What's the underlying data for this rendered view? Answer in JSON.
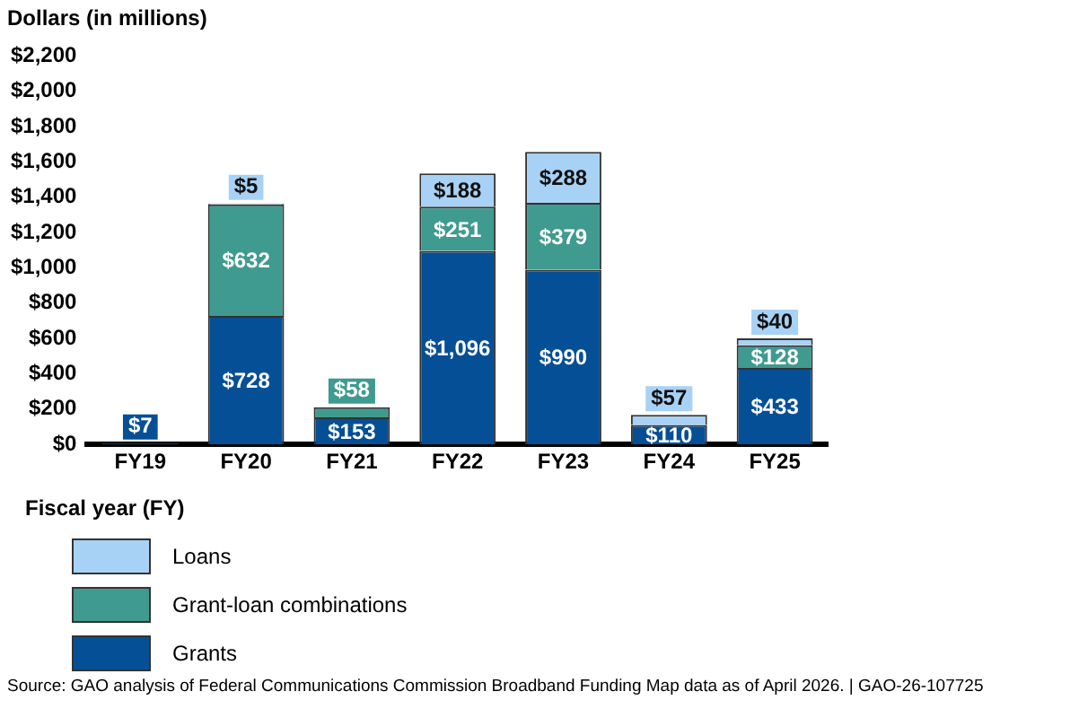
{
  "chart_data": {
    "type": "bar",
    "stacked": true,
    "ylabel": "Dollars (in millions)",
    "xlabel": "Fiscal year (FY)",
    "categories": [
      "FY19",
      "FY20",
      "FY21",
      "FY22",
      "FY23",
      "FY24",
      "FY25"
    ],
    "series": [
      {
        "name": "Grants",
        "color": "#054f96",
        "values": [
          7,
          728,
          153,
          1096,
          990,
          110,
          433
        ],
        "value_labels": [
          "$7",
          "$728",
          "$153",
          "$1,096",
          "$990",
          "$110",
          "$433"
        ]
      },
      {
        "name": "Grant-loan combinations",
        "color": "#3f9a8f",
        "values": [
          null,
          632,
          58,
          251,
          379,
          null,
          128
        ],
        "value_labels": [
          null,
          "$632",
          "$58",
          "$251",
          "$379",
          null,
          "$128"
        ]
      },
      {
        "name": "Loans",
        "color": "#a8d2f5",
        "values": [
          null,
          5,
          null,
          188,
          288,
          57,
          40
        ],
        "value_labels": [
          null,
          "$5",
          null,
          "$188",
          "$288",
          "$57",
          "$40"
        ]
      }
    ],
    "ylim": [
      0,
      2200
    ],
    "yticks": [
      {
        "value": 0,
        "label": "$0"
      },
      {
        "value": 200,
        "label": "$200"
      },
      {
        "value": 400,
        "label": "$400"
      },
      {
        "value": 600,
        "label": "$600"
      },
      {
        "value": 800,
        "label": "$800"
      },
      {
        "value": 1000,
        "label": "$1,000"
      },
      {
        "value": 1200,
        "label": "$1,200"
      },
      {
        "value": 1400,
        "label": "$1,400"
      },
      {
        "value": 1600,
        "label": "$1,600"
      },
      {
        "value": 1800,
        "label": "$1,800"
      },
      {
        "value": 2000,
        "label": "$2,000"
      },
      {
        "value": 2200,
        "label": "$2,200"
      }
    ],
    "grid": false,
    "legend": "bottom",
    "annotations": [
      "Source: GAO analysis of Federal Communications Commission Broadband Funding Map data as of April 2026.  |  GAO-26-107725"
    ]
  }
}
